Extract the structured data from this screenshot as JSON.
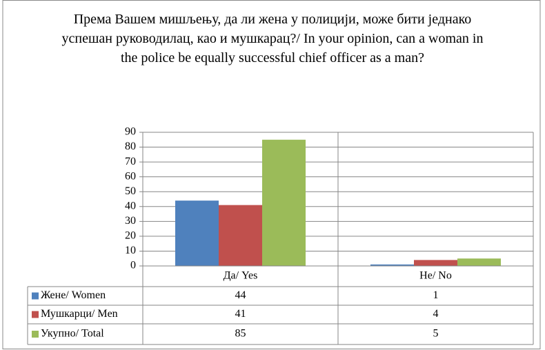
{
  "chart_data": {
    "type": "bar",
    "title": "Према Вашем мишљењу, да ли жена у полицији, може бити једнако успешан руководилац, као и мушкарац?/ In your opinion, can a woman in the police be equally successful chief officer as a man?",
    "categories": [
      "Да/ Yes",
      "Не/ No"
    ],
    "series": [
      {
        "name": "Жене/ Women",
        "color": "#4F81BD",
        "values": [
          44,
          1
        ]
      },
      {
        "name": "Мушкарци/ Men",
        "color": "#C0504D",
        "values": [
          41,
          4
        ]
      },
      {
        "name": "Укупно/ Total",
        "color": "#9BBB59",
        "values": [
          85,
          5
        ]
      }
    ],
    "ylim": [
      0,
      90
    ],
    "yticks": [
      0,
      10,
      20,
      30,
      40,
      50,
      60,
      70,
      80,
      90
    ],
    "grid": true,
    "data_table": true
  }
}
